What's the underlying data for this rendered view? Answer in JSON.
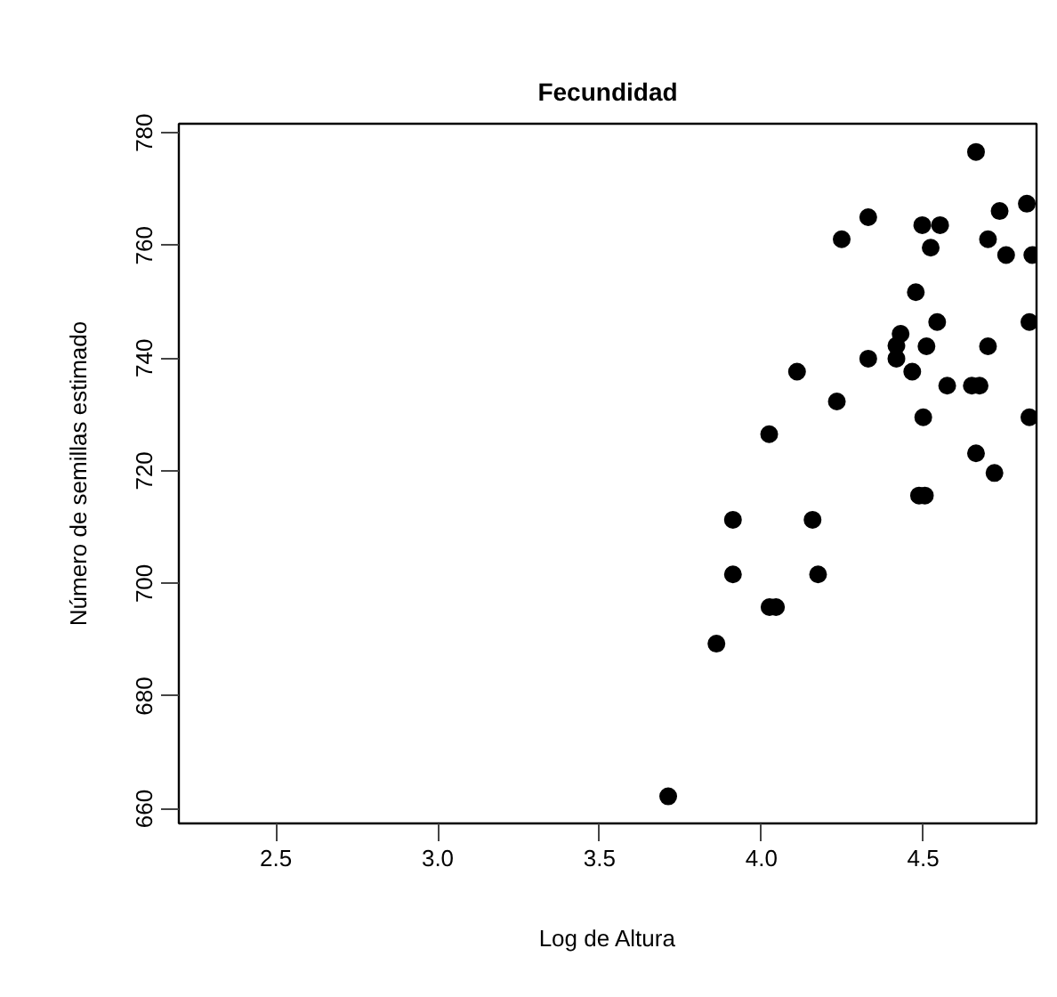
{
  "chart_data": {
    "type": "scatter",
    "title": "Fecundidad",
    "xlabel": "Log de Altura",
    "ylabel": "Número de semillas estimado",
    "x": [
      4.663,
      4.33,
      4.248,
      4.497,
      4.552,
      4.523,
      4.736,
      4.82,
      4.7,
      4.756,
      4.837,
      4.477,
      4.543,
      4.828,
      4.43,
      4.417,
      4.417,
      4.51,
      4.7,
      4.33,
      4.466,
      4.11,
      4.574,
      4.65,
      4.674,
      4.233,
      4.5,
      4.828,
      4.024,
      4.663,
      4.72,
      4.487,
      4.505,
      3.912,
      4.158,
      3.912,
      4.175,
      4.025,
      4.045,
      3.861,
      3.712
    ],
    "values": [
      776.6,
      765.0,
      761.1,
      763.6,
      763.6,
      759.6,
      766.1,
      767.4,
      761.1,
      758.3,
      758.3,
      751.7,
      746.4,
      746.4,
      744.3,
      742.2,
      739.9,
      742.1,
      742.1,
      739.9,
      737.6,
      737.6,
      735.1,
      735.1,
      735.1,
      732.3,
      729.5,
      729.5,
      726.5,
      723.1,
      719.6,
      715.6,
      715.6,
      711.3,
      711.3,
      701.6,
      701.6,
      695.8,
      695.8,
      689.3,
      662.2
    ],
    "color": "#000000",
    "marker": "circle",
    "xlim": [
      2.2,
      4.85
    ],
    "ylim": [
      657.4,
      781.6
    ],
    "xticks": [
      2.5,
      {
        "value": 3,
        "label": "3.0"
      },
      3.5,
      {
        "value": 4,
        "label": "4.0"
      },
      4.5
    ],
    "yticks": [
      660,
      680,
      700,
      720,
      740,
      760,
      780
    ],
    "grid": false
  }
}
